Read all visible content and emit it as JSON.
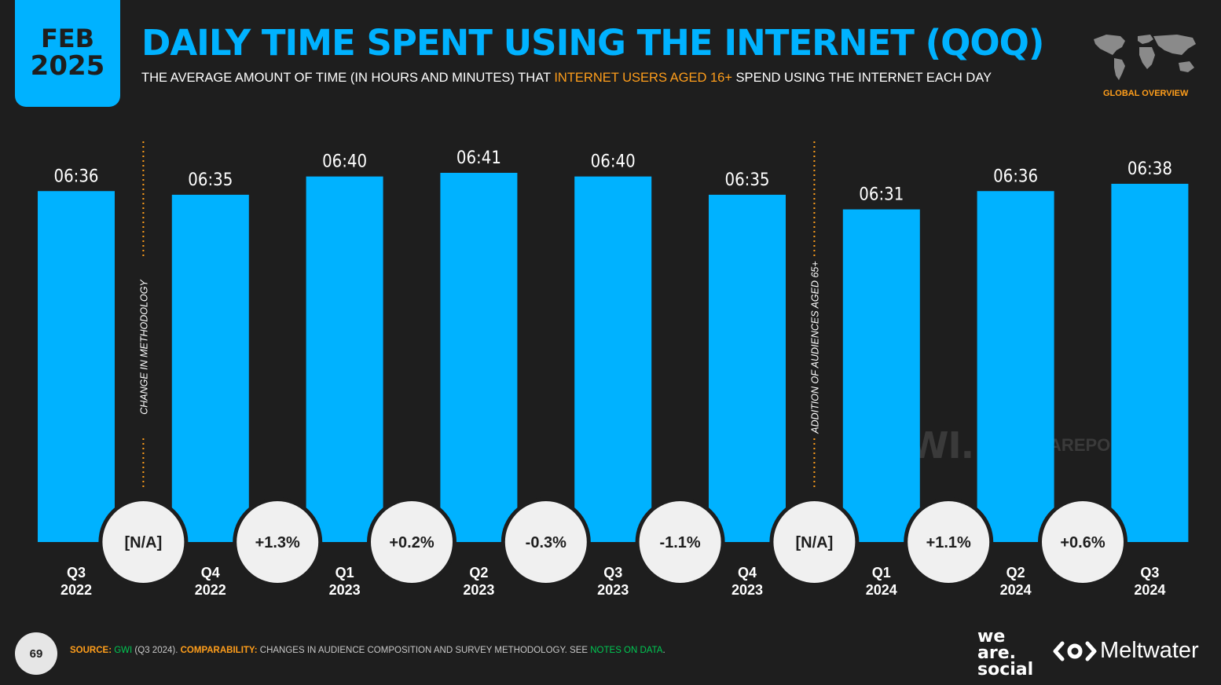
{
  "badge": {
    "month": "FEB",
    "year": "2025"
  },
  "header": {
    "title": "DAILY TIME SPENT USING THE INTERNET (QOQ)",
    "subtitle_pre": "THE AVERAGE AMOUNT OF TIME (IN HOURS AND MINUTES) THAT ",
    "subtitle_highlight": "INTERNET USERS AGED 16+",
    "subtitle_post": " SPEND USING THE INTERNET EACH DAY",
    "region_label": "GLOBAL OVERVIEW"
  },
  "colors": {
    "bar": "#00b2ff",
    "accent": "#ff9e1b",
    "background": "#1e1e1e",
    "bubble": "#f0f0f0",
    "divider": "#ff9e1b"
  },
  "chart_data": {
    "type": "bar",
    "categories": [
      [
        "Q3",
        "2022"
      ],
      [
        "Q4",
        "2022"
      ],
      [
        "Q1",
        "2023"
      ],
      [
        "Q2",
        "2023"
      ],
      [
        "Q3",
        "2023"
      ],
      [
        "Q4",
        "2023"
      ],
      [
        "Q1",
        "2024"
      ],
      [
        "Q2",
        "2024"
      ],
      [
        "Q3",
        "2024"
      ]
    ],
    "value_labels": [
      "06:36",
      "06:35",
      "06:40",
      "06:41",
      "06:40",
      "06:35",
      "06:31",
      "06:36",
      "06:38"
    ],
    "values_minutes": [
      396,
      395,
      400,
      401,
      400,
      395,
      391,
      396,
      398
    ],
    "changes": [
      "[N/A]",
      "+1.3%",
      "+0.2%",
      "-0.3%",
      "-1.1%",
      "[N/A]",
      "+1.1%",
      "+0.6%"
    ],
    "dividers": [
      {
        "after_index": 0,
        "label": "CHANGE IN METHODOLOGY"
      },
      {
        "after_index": 5,
        "label": "ADDITION OF AUDIENCES AGED 65+"
      }
    ]
  },
  "watermark": {
    "gwi": "GWI.",
    "datareportal": "DATAREPORTAL"
  },
  "footer": {
    "page_number": "69",
    "source_label": "SOURCE:",
    "source_name": "GWI",
    "source_detail": " (Q3 2024). ",
    "comparability_label": "COMPARABILITY:",
    "comparability_text": " CHANGES IN AUDIENCE COMPOSITION AND SURVEY METHODOLOGY. SEE ",
    "notes_link": "NOTES ON DATA",
    "notes_end": ".",
    "brand_line1": "we",
    "brand_line2": "are.",
    "brand_line3": "social",
    "meltwater": "Meltwater"
  }
}
